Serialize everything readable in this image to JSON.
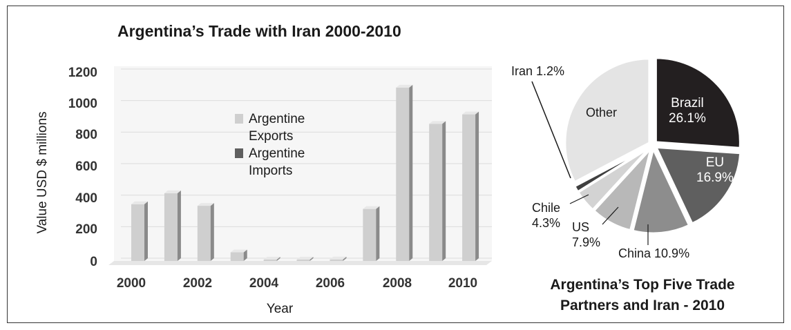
{
  "chart_data": [
    {
      "type": "bar",
      "title": "Argentina’s Trade with Iran 2000-2010",
      "xlabel": "Year",
      "ylabel": "Value USD $ millions",
      "ylim": [
        0,
        1200
      ],
      "y_ticks": [
        "1200",
        "1000",
        "800",
        "600",
        "400",
        "200",
        "0"
      ],
      "x_ticks": [
        "2000",
        "2002",
        "2004",
        "2006",
        "2008",
        "2010"
      ],
      "categories": [
        "2000",
        "2001",
        "2002",
        "2003",
        "2004",
        "2005",
        "2006",
        "2007",
        "2008",
        "2009",
        "2010"
      ],
      "series": [
        {
          "name": "Argentine Exports",
          "values": [
            360,
            430,
            350,
            55,
            8,
            5,
            10,
            330,
            1100,
            870,
            930
          ],
          "color": "#cfcfcf"
        },
        {
          "name": "Argentine Imports",
          "values": [
            0,
            0,
            0,
            0,
            0,
            0,
            0,
            0,
            0,
            0,
            0
          ],
          "color": "#5f5f5f"
        }
      ],
      "legend": {
        "placement": "center",
        "items": [
          {
            "label": "Argentine Exports",
            "color": "#cfcfcf"
          },
          {
            "label": "Argentine Imports",
            "color": "#5f5f5f"
          }
        ]
      },
      "grid": true
    },
    {
      "type": "pie",
      "title": "Argentina’s Top Five Trade Partners and Iran - 2010",
      "slices": [
        {
          "name": "Brazil",
          "value": 26.1,
          "label": "Brazil\n26.1%",
          "color": "#231f20"
        },
        {
          "name": "EU",
          "value": 16.9,
          "label": "EU\n16.9%",
          "color": "#5f5f5f"
        },
        {
          "name": "China",
          "value": 10.9,
          "label": "China 10.9%",
          "color": "#8d8d8d"
        },
        {
          "name": "US",
          "value": 7.9,
          "label": "US\n7.9%",
          "color": "#b8b8b8"
        },
        {
          "name": "Chile",
          "value": 4.3,
          "label": "Chile\n4.3%",
          "color": "#d3d3d3"
        },
        {
          "name": "Iran",
          "value": 1.2,
          "label": "Iran 1.2%",
          "color": "#3f3f3f"
        },
        {
          "name": "Other",
          "value": 32.7,
          "label": "Other",
          "color": "#e4e4e4"
        }
      ]
    }
  ]
}
